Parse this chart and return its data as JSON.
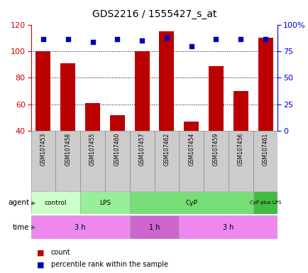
{
  "title": "GDS2216 / 1555427_s_at",
  "samples": [
    "GSM107453",
    "GSM107458",
    "GSM107455",
    "GSM107460",
    "GSM107457",
    "GSM107462",
    "GSM107454",
    "GSM107459",
    "GSM107456",
    "GSM107461"
  ],
  "count_values": [
    100,
    91,
    61,
    52,
    100,
    115,
    47,
    89,
    70,
    110
  ],
  "percentile_values": [
    109,
    109,
    107,
    109,
    108,
    110,
    104,
    109,
    109,
    109
  ],
  "ylim_left": [
    40,
    120
  ],
  "ylim_right": [
    0,
    100
  ],
  "left_ticks": [
    40,
    60,
    80,
    100,
    120
  ],
  "right_ticks": [
    0,
    25,
    50,
    75,
    100
  ],
  "right_tick_labels": [
    "0",
    "25",
    "50",
    "75",
    "100%"
  ],
  "bar_color": "#bb0000",
  "dot_color": "#0000bb",
  "agent_groups": [
    {
      "label": "control",
      "start": 0,
      "end": 2,
      "color": "#ccffcc"
    },
    {
      "label": "LPS",
      "start": 2,
      "end": 4,
      "color": "#99ee99"
    },
    {
      "label": "CyP",
      "start": 4,
      "end": 9,
      "color": "#77dd77"
    },
    {
      "label": "CyP plus LPS",
      "start": 9,
      "end": 10,
      "color": "#44bb44"
    }
  ],
  "time_groups": [
    {
      "label": "3 h",
      "start": 0,
      "end": 4,
      "color": "#ee88ee"
    },
    {
      "label": "1 h",
      "start": 4,
      "end": 6,
      "color": "#cc66cc"
    },
    {
      "label": "3 h",
      "start": 6,
      "end": 10,
      "color": "#ee88ee"
    }
  ],
  "agent_label": "agent",
  "time_label": "time",
  "legend_count_label": "count",
  "legend_percentile_label": "percentile rank within the sample",
  "axis_color_left": "#cc0000",
  "axis_color_right": "#0000cc",
  "sample_box_color": "#cccccc",
  "sample_box_edge": "#888888"
}
